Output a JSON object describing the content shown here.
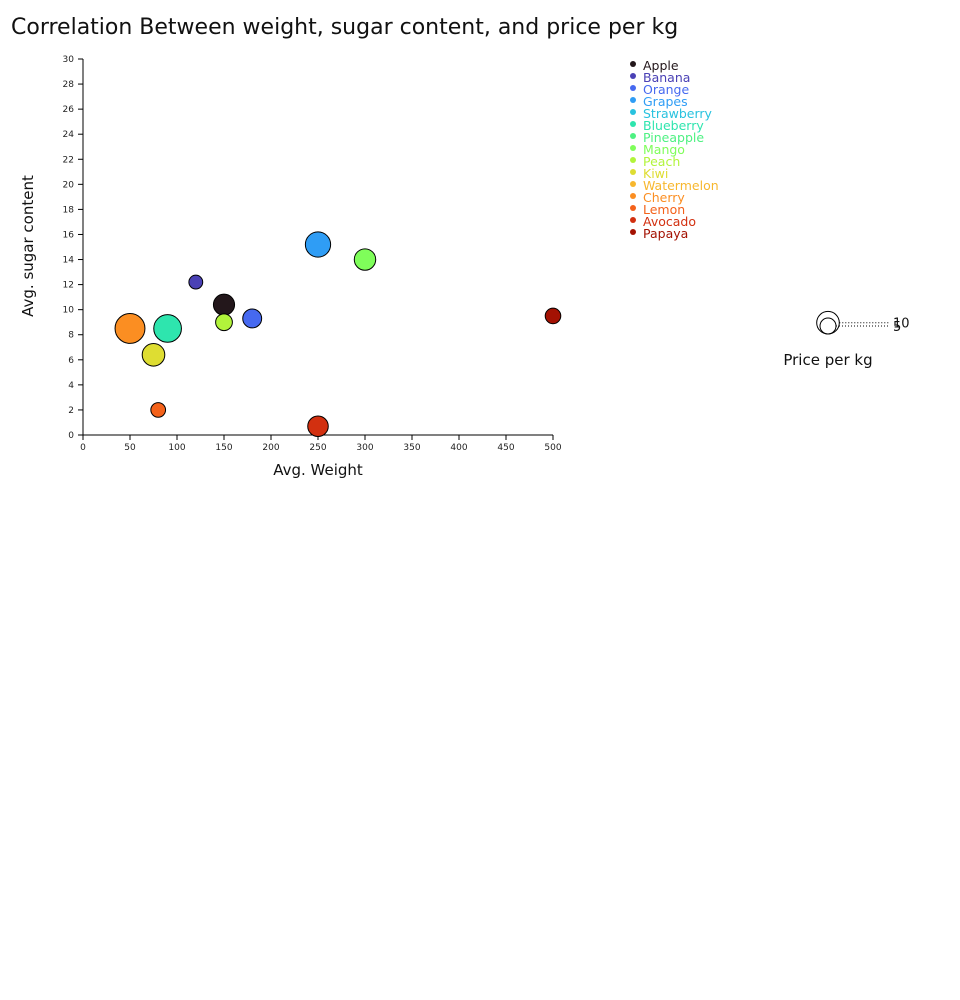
{
  "chart_data": {
    "type": "scatter",
    "title": "Correlation Between weight, sugar content, and price per kg",
    "xlabel": "Avg. Weight",
    "ylabel": "Avg. sugar content",
    "xlim": [
      0,
      500
    ],
    "ylim": [
      0,
      30
    ],
    "x_ticks": [
      0,
      50,
      100,
      150,
      200,
      250,
      300,
      350,
      400,
      450,
      500
    ],
    "y_ticks": [
      0,
      2,
      4,
      6,
      8,
      10,
      12,
      14,
      16,
      18,
      20,
      22,
      24,
      26,
      28,
      30
    ],
    "grid": false,
    "legend_position": "top-right",
    "size_encoding": "price per kg",
    "size_legend": {
      "title": "Price per kg",
      "values": [
        10,
        5
      ]
    },
    "series": [
      {
        "name": "Apple",
        "x": 150,
        "y": 10.4,
        "size": 3.5,
        "color": "#23171b"
      },
      {
        "name": "Banana",
        "x": 120,
        "y": 12.2,
        "size": 1.5,
        "color": "#4a41b5"
      },
      {
        "name": "Orange",
        "x": 180,
        "y": 9.3,
        "size": 2.8,
        "color": "#4669f0"
      },
      {
        "name": "Grapes",
        "x": 250,
        "y": 15.2,
        "size": 5.0,
        "color": "#2f9df5"
      },
      {
        "name": "Strawberry",
        "x": 250,
        "y": 15.2,
        "size": 0,
        "color": "#28c2df"
      },
      {
        "name": "Blueberry",
        "x": 90,
        "y": 8.5,
        "size": 6.0,
        "color": "#2ee5ae"
      },
      {
        "name": "Pineapple",
        "x": 150,
        "y": 9.0,
        "size": 0,
        "color": "#4ef182"
      },
      {
        "name": "Mango",
        "x": 300,
        "y": 14.0,
        "size": 3.6,
        "color": "#7ffe5a"
      },
      {
        "name": "Peach",
        "x": 150,
        "y": 9.0,
        "size": 2.2,
        "color": "#b2f43b"
      },
      {
        "name": "Kiwi",
        "x": 75,
        "y": 6.4,
        "size": 4.0,
        "color": "#dedd32"
      },
      {
        "name": "Watermelon",
        "x": 75,
        "y": 6.4,
        "size": 0,
        "color": "#f7b72e"
      },
      {
        "name": "Cherry",
        "x": 50,
        "y": 8.5,
        "size": 7.0,
        "color": "#fb8e22"
      },
      {
        "name": "Lemon",
        "x": 80,
        "y": 2.0,
        "size": 1.7,
        "color": "#f4621a"
      },
      {
        "name": "Avocado",
        "x": 250,
        "y": 0.7,
        "size": 3.3,
        "color": "#d23010"
      },
      {
        "name": "Papaya",
        "x": 500,
        "y": 9.5,
        "size": 1.9,
        "color": "#a41203"
      }
    ]
  }
}
